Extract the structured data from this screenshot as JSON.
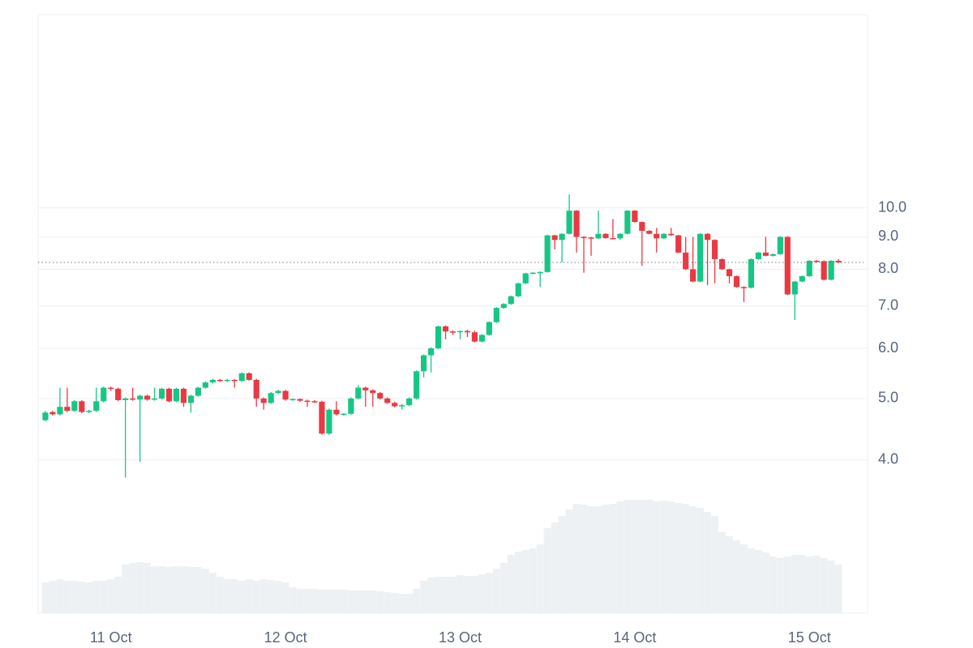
{
  "chart_data": {
    "type": "candlestick",
    "log_scale": true,
    "grid": true,
    "up_color": "#16c784",
    "down_color": "#ea3943",
    "volume_color": "#eef1f4",
    "x": [
      0,
      1,
      2,
      3,
      4,
      5,
      6,
      7,
      8,
      9,
      10,
      11,
      12,
      13,
      14,
      15,
      16,
      17,
      18,
      19,
      20,
      21,
      22,
      23,
      24,
      25,
      26,
      27,
      28,
      29,
      30,
      31,
      32,
      33,
      34,
      35,
      36,
      37,
      38,
      39,
      40,
      41,
      42,
      43,
      44,
      45,
      46,
      47,
      48,
      49,
      50,
      51,
      52,
      53,
      54,
      55,
      56,
      57,
      58,
      59,
      60,
      61,
      62,
      63,
      64,
      65,
      66,
      67,
      68,
      69,
      70,
      71,
      72,
      73,
      74,
      75,
      76,
      77,
      78,
      79,
      80,
      81,
      82,
      83,
      84,
      85,
      86,
      87,
      88,
      89,
      90,
      91,
      92,
      93,
      94,
      95,
      96,
      97,
      98,
      99,
      100,
      101,
      102,
      103,
      104,
      105,
      106,
      107,
      108,
      109
    ],
    "xlim": [
      -1,
      113
    ],
    "xticks": [
      {
        "value": 9,
        "label": "11 Oct"
      },
      {
        "value": 33,
        "label": "12 Oct"
      },
      {
        "value": 57,
        "label": "13 Oct"
      },
      {
        "value": 81,
        "label": "14 Oct"
      },
      {
        "value": 105,
        "label": "15 Oct"
      }
    ],
    "ylim": [
      2.29,
      20.2
    ],
    "yticks": [
      {
        "value": 4,
        "label": "4.0"
      },
      {
        "value": 5,
        "label": "5.0"
      },
      {
        "value": 6,
        "label": "6.0"
      },
      {
        "value": 7,
        "label": "7.0"
      },
      {
        "value": 8,
        "label": "8.0"
      },
      {
        "value": 9,
        "label": "9.0"
      },
      {
        "value": 10,
        "label": "10.0"
      }
    ],
    "volume_lim": [
      0,
      160
    ],
    "open": [
      4.62,
      4.76,
      4.72,
      4.85,
      4.78,
      4.95,
      4.76,
      4.78,
      4.95,
      5.2,
      5.18,
      4.97,
      5.0,
      4.98,
      5.05,
      4.98,
      5.0,
      5.18,
      4.95,
      5.18,
      4.92,
      5.05,
      5.2,
      5.3,
      5.35,
      5.33,
      5.35,
      5.33,
      5.48,
      5.35,
      5.0,
      4.92,
      5.1,
      5.14,
      4.98,
      4.99,
      4.96,
      4.95,
      4.94,
      4.4,
      4.8,
      4.72,
      4.73,
      5.0,
      5.2,
      5.15,
      5.1,
      5.0,
      4.92,
      4.86,
      4.88,
      5.0,
      5.52,
      5.85,
      6.0,
      6.5,
      6.38,
      6.37,
      6.39,
      6.36,
      6.15,
      6.3,
      6.6,
      6.95,
      7.05,
      7.25,
      7.6,
      7.88,
      7.9,
      7.92,
      9.05,
      8.9,
      9.1,
      9.9,
      9.0,
      8.98,
      8.95,
      9.1,
      8.96,
      8.95,
      9.1,
      9.9,
      9.5,
      9.2,
      9.1,
      8.95,
      9.1,
      9.05,
      8.5,
      8.0,
      7.65,
      9.1,
      8.9,
      8.3,
      8.0,
      7.8,
      7.5,
      7.48,
      8.3,
      8.5,
      8.4,
      8.45,
      9.0,
      7.3,
      7.65,
      7.8,
      8.25,
      8.24,
      7.7,
      8.25
    ],
    "high": [
      4.78,
      4.78,
      5.2,
      5.2,
      4.97,
      4.97,
      4.8,
      5.2,
      5.22,
      5.22,
      5.2,
      5.02,
      5.2,
      5.07,
      5.07,
      5.2,
      5.2,
      5.2,
      5.2,
      5.2,
      5.07,
      5.22,
      5.32,
      5.37,
      5.37,
      5.37,
      5.37,
      5.5,
      5.5,
      5.37,
      5.02,
      5.12,
      5.16,
      5.16,
      5.0,
      5.0,
      4.98,
      4.97,
      4.96,
      4.82,
      4.95,
      4.74,
      5.02,
      5.25,
      5.22,
      5.17,
      5.12,
      5.02,
      4.94,
      4.9,
      5.02,
      5.54,
      5.87,
      6.02,
      6.52,
      6.52,
      6.4,
      6.4,
      6.42,
      6.4,
      6.32,
      6.62,
      6.97,
      7.07,
      7.27,
      7.62,
      7.9,
      7.92,
      7.94,
      9.07,
      9.07,
      9.12,
      10.5,
      9.92,
      9.02,
      9.0,
      9.9,
      9.12,
      9.6,
      9.12,
      9.92,
      9.92,
      9.52,
      9.22,
      9.3,
      9.12,
      9.3,
      9.07,
      9.0,
      9.0,
      9.12,
      9.12,
      8.92,
      8.32,
      8.02,
      7.82,
      7.52,
      8.32,
      8.52,
      9.0,
      8.47,
      9.02,
      9.02,
      7.67,
      7.82,
      8.27,
      8.27,
      8.26,
      8.27,
      8.3
    ],
    "low": [
      4.6,
      4.7,
      4.7,
      4.76,
      4.76,
      4.74,
      4.74,
      4.76,
      4.93,
      5.14,
      4.95,
      3.75,
      4.96,
      3.97,
      4.96,
      4.96,
      4.98,
      4.93,
      4.93,
      4.85,
      4.75,
      5.03,
      5.18,
      5.28,
      5.31,
      5.31,
      5.2,
      5.31,
      5.33,
      4.85,
      4.8,
      4.9,
      5.08,
      4.96,
      4.96,
      4.94,
      4.85,
      4.92,
      4.38,
      4.38,
      4.7,
      4.7,
      4.71,
      4.98,
      4.85,
      4.85,
      4.98,
      4.9,
      4.84,
      4.8,
      4.86,
      4.98,
      5.4,
      5.5,
      5.98,
      6.2,
      6.3,
      6.2,
      6.25,
      6.13,
      6.13,
      6.28,
      6.58,
      6.93,
      7.03,
      7.23,
      7.58,
      7.86,
      7.5,
      7.9,
      8.6,
      8.2,
      9.08,
      8.5,
      7.9,
      8.4,
      8.93,
      8.94,
      8.93,
      8.9,
      9.08,
      9.48,
      8.1,
      9.08,
      8.5,
      8.93,
      9.03,
      8.48,
      7.98,
      7.63,
      7.63,
      7.55,
      7.6,
      7.98,
      7.6,
      7.48,
      7.1,
      7.46,
      8.28,
      8.38,
      8.38,
      8.43,
      7.28,
      6.65,
      7.63,
      7.78,
      8.2,
      7.68,
      7.68,
      8.18
    ],
    "close": [
      4.75,
      4.72,
      4.85,
      4.78,
      4.95,
      4.76,
      4.78,
      4.95,
      5.2,
      5.18,
      4.97,
      5.0,
      4.98,
      5.05,
      4.98,
      5.0,
      5.18,
      4.95,
      5.18,
      4.92,
      5.05,
      5.2,
      5.3,
      5.35,
      5.33,
      5.35,
      5.33,
      5.48,
      5.35,
      5.0,
      4.92,
      5.1,
      5.14,
      4.98,
      4.99,
      4.96,
      4.95,
      4.94,
      4.4,
      4.8,
      4.72,
      4.73,
      5.0,
      5.2,
      5.15,
      5.1,
      5.0,
      4.92,
      4.86,
      4.88,
      5.0,
      5.52,
      5.85,
      6.0,
      6.5,
      6.38,
      6.37,
      6.39,
      6.36,
      6.15,
      6.3,
      6.6,
      6.95,
      7.05,
      7.25,
      7.6,
      7.88,
      7.9,
      7.92,
      9.05,
      8.9,
      9.1,
      9.9,
      9.0,
      8.98,
      8.95,
      9.1,
      8.96,
      8.95,
      9.1,
      9.9,
      9.5,
      9.2,
      9.1,
      8.95,
      9.1,
      9.05,
      8.5,
      8.0,
      7.65,
      9.1,
      8.9,
      8.3,
      8.0,
      7.8,
      7.5,
      7.48,
      8.3,
      8.5,
      8.4,
      8.45,
      9.0,
      7.3,
      7.65,
      7.8,
      8.25,
      8.24,
      7.7,
      8.25,
      8.2
    ],
    "volume": [
      38,
      40,
      42,
      40,
      40,
      39,
      38,
      40,
      40,
      42,
      45,
      60,
      62,
      63,
      62,
      58,
      58,
      57,
      58,
      58,
      57,
      57,
      55,
      50,
      45,
      42,
      42,
      40,
      42,
      40,
      42,
      41,
      40,
      38,
      32,
      30,
      30,
      30,
      29,
      29,
      29,
      29,
      28,
      28,
      28,
      28,
      27,
      26,
      25,
      24,
      24,
      30,
      40,
      44,
      45,
      45,
      45,
      47,
      46,
      46,
      48,
      50,
      55,
      62,
      72,
      76,
      78,
      80,
      85,
      105,
      112,
      120,
      128,
      135,
      134,
      132,
      132,
      134,
      135,
      138,
      140,
      140,
      140,
      140,
      138,
      139,
      138,
      136,
      135,
      132,
      130,
      125,
      120,
      100,
      95,
      90,
      85,
      80,
      78,
      75,
      70,
      68,
      70,
      72,
      72,
      70,
      71,
      68,
      65,
      60
    ]
  }
}
